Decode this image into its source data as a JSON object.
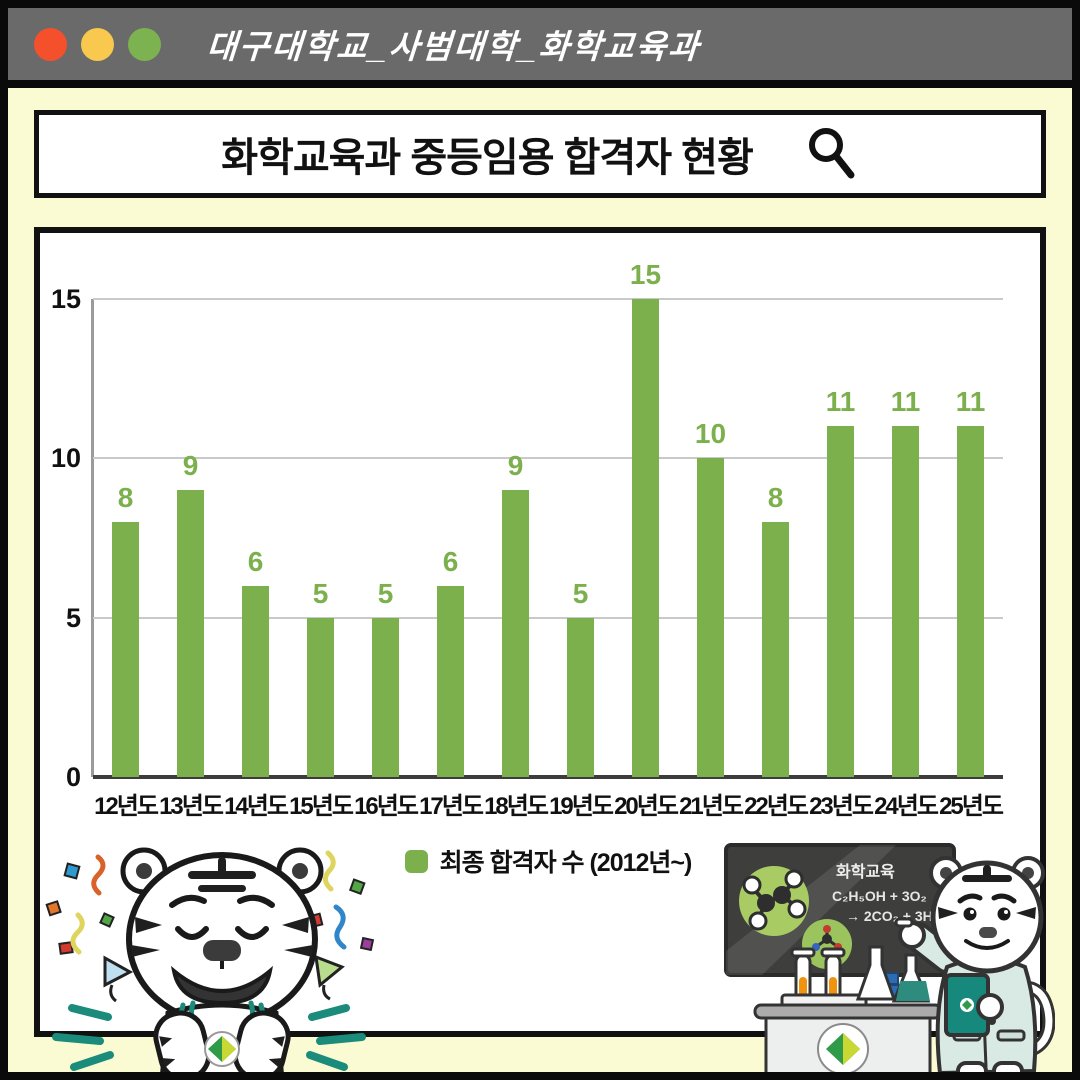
{
  "window": {
    "title": "대구대학교_사범대학_화학교육과",
    "bar_color": "#6A6A6A",
    "dot_colors": [
      "#F4502B",
      "#F8C94E",
      "#7CB350"
    ]
  },
  "search_banner": {
    "title": "화학교육과 중등임용 합격자 현황",
    "icon": "search-icon"
  },
  "chart_data": {
    "type": "bar",
    "title": "화학교육과 중등임용 합격자 현황",
    "categories": [
      "12년도",
      "13년도",
      "14년도",
      "15년도",
      "16년도",
      "17년도",
      "18년도",
      "19년도",
      "20년도",
      "21년도",
      "22년도",
      "23년도",
      "24년도",
      "25년도"
    ],
    "values": [
      8,
      9,
      6,
      5,
      5,
      6,
      9,
      5,
      15,
      10,
      8,
      11,
      11,
      11
    ],
    "series_name": "최종 합격자 수 (2012년~)",
    "xlabel": "",
    "ylabel": "",
    "ylim": [
      0,
      15
    ],
    "yticks": [
      0,
      5,
      10,
      15
    ],
    "grid": true,
    "legend_position": "bottom",
    "bar_color": "#7CB04D",
    "value_label_color": "#7CB04D"
  },
  "chalkboard": {
    "title": "화학교육",
    "formula_line1": "C₂H₅OH + 3O₂",
    "formula_line2": "→ 2CO₂ + 3H₂O"
  },
  "mascots": {
    "left": "celebrating-tiger-mascot",
    "right": "tiger-teacher-mascot"
  },
  "colors": {
    "background": "#FAFBD2",
    "accent_teal": "#1B8B7B",
    "chalkboard": "#3E3E3C",
    "board_circle_green": "#A8CB63"
  }
}
